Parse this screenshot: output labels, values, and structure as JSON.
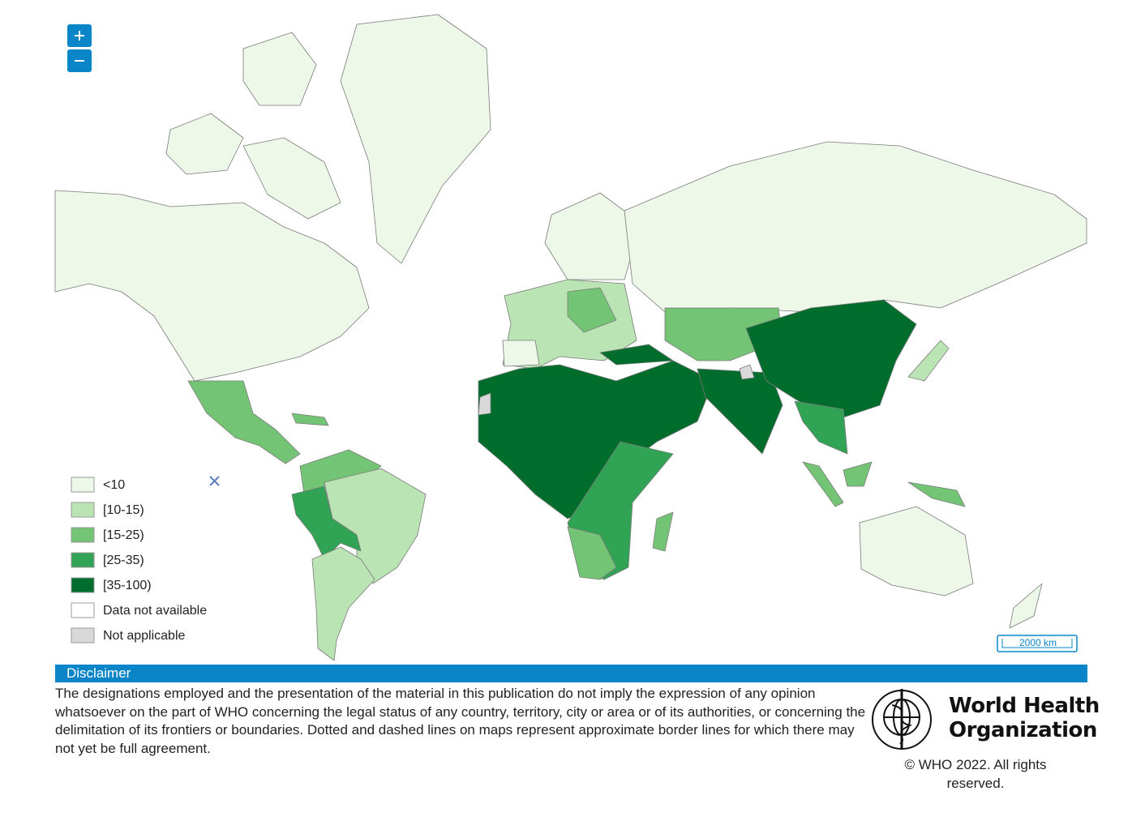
{
  "legend": {
    "items": [
      {
        "label": "<10",
        "color": "#edf8e9"
      },
      {
        "label": "[10-15)",
        "color": "#bae4b3"
      },
      {
        "label": "[15-25)",
        "color": "#74c476"
      },
      {
        "label": "[25-35)",
        "color": "#31a354"
      },
      {
        "label": "[35-100)",
        "color": "#006d2c"
      },
      {
        "label": "Data not available",
        "color": "#ffffff"
      },
      {
        "label": "Not applicable",
        "color": "#d9d9d9"
      }
    ]
  },
  "scale_bar": "2000 km",
  "disclaimer": {
    "title": "Disclaimer",
    "text": "The designations employed and the presentation of the material in this publication do not imply the expression of any opinion whatsoever on the part of WHO concerning the legal status of any country, territory, city or area or of its authorities, or concerning the delimitation of its frontiers or boundaries. Dotted and dashed lines on maps represent approximate border lines for which there may not yet be full agreement."
  },
  "logo": {
    "line1": "World Health",
    "line2": "Organization"
  },
  "copyright": "© WHO 2022. All rights reserved."
}
